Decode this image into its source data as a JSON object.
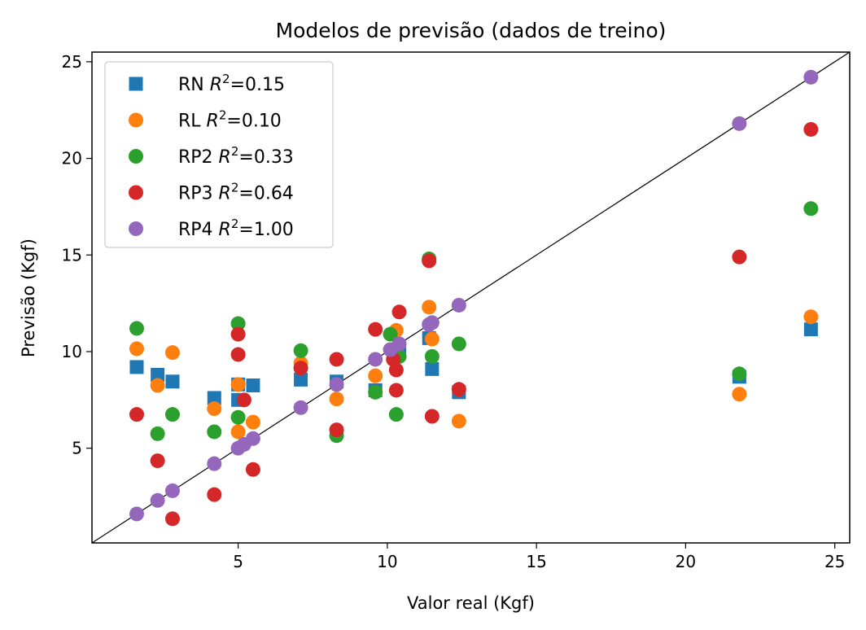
{
  "chart_data": {
    "type": "scatter",
    "title": "Modelos de previsão (dados de treino)",
    "xlabel": "Valor real (Kgf)",
    "ylabel": "Previsão (Kgf)",
    "xlim": [
      0.1,
      25.5
    ],
    "ylim": [
      0.1,
      25.5
    ],
    "xticks": [
      5,
      10,
      15,
      20,
      25
    ],
    "yticks": [
      5,
      10,
      15,
      20,
      25
    ],
    "grid": false,
    "legend_position": "top-left",
    "reference_line": "y = x",
    "series": [
      {
        "label": "RN",
        "r2": "0.15",
        "color": "#1f77b4",
        "marker": "square",
        "x": [
          1.6,
          2.3,
          2.8,
          4.2,
          5.0,
          5.0,
          5.5,
          7.1,
          8.3,
          9.6,
          10.4,
          11.4,
          11.5,
          12.4,
          21.8,
          24.2
        ],
        "y": [
          9.2,
          8.8,
          8.45,
          7.6,
          8.3,
          7.5,
          8.25,
          8.55,
          8.45,
          8.0,
          10.0,
          10.7,
          9.1,
          7.9,
          8.7,
          11.15
        ]
      },
      {
        "label": "RL",
        "r2": "0.10",
        "color": "#ff7f0e",
        "marker": "circle",
        "x": [
          1.6,
          2.3,
          2.8,
          4.2,
          5.0,
          5.0,
          5.5,
          7.1,
          8.3,
          9.6,
          10.3,
          11.4,
          11.5,
          12.4,
          21.8,
          24.2
        ],
        "y": [
          10.15,
          8.25,
          9.95,
          7.05,
          8.3,
          5.85,
          6.35,
          9.4,
          7.55,
          8.75,
          11.1,
          12.3,
          10.65,
          6.4,
          7.8,
          11.8
        ]
      },
      {
        "label": "RP2",
        "r2": "0.33",
        "color": "#2ca02c",
        "marker": "circle",
        "x": [
          1.6,
          2.3,
          2.8,
          4.2,
          5.0,
          5.0,
          7.1,
          8.3,
          9.6,
          10.1,
          10.3,
          10.4,
          11.4,
          11.5,
          12.4,
          21.8,
          24.2
        ],
        "y": [
          11.2,
          5.75,
          6.75,
          5.85,
          11.45,
          6.6,
          10.05,
          5.65,
          7.9,
          10.9,
          6.75,
          9.75,
          14.8,
          9.75,
          10.4,
          8.85,
          17.4
        ]
      },
      {
        "label": "RP3",
        "r2": "0.64",
        "color": "#d62728",
        "marker": "circle",
        "x": [
          1.6,
          2.3,
          2.8,
          4.2,
          5.0,
          5.0,
          5.2,
          5.5,
          7.1,
          8.3,
          8.3,
          9.6,
          10.2,
          10.3,
          10.3,
          10.4,
          11.4,
          11.5,
          12.4,
          21.8,
          24.2
        ],
        "y": [
          6.75,
          4.35,
          1.35,
          2.6,
          10.9,
          9.85,
          7.5,
          3.9,
          9.15,
          9.6,
          5.95,
          11.15,
          9.6,
          9.05,
          8.0,
          12.05,
          14.7,
          6.65,
          8.05,
          14.9,
          21.5
        ]
      },
      {
        "label": "RP4",
        "r2": "1.00",
        "color": "#9467bd",
        "marker": "circle",
        "x": [
          1.6,
          2.3,
          2.8,
          4.2,
          5.0,
          5.2,
          5.5,
          7.1,
          8.3,
          9.6,
          10.1,
          10.4,
          11.4,
          11.5,
          12.4,
          21.8,
          24.2
        ],
        "y": [
          1.6,
          2.3,
          2.8,
          4.2,
          5.0,
          5.2,
          5.5,
          7.1,
          8.3,
          9.6,
          10.1,
          10.4,
          11.4,
          11.5,
          12.4,
          21.8,
          24.2
        ]
      }
    ]
  }
}
